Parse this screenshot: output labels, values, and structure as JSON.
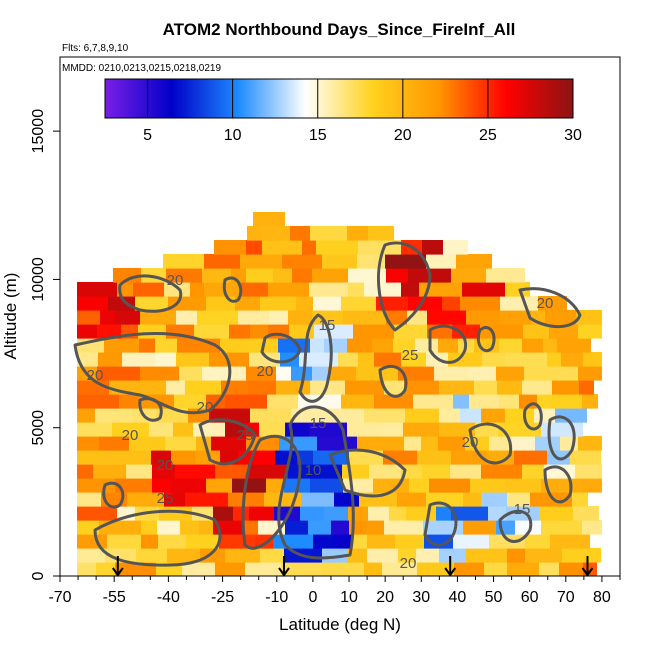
{
  "chart_data": {
    "type": "heatmap",
    "title": "ATOM2 Northbound Days_Since_FireInf_All",
    "subtitle_lines": [
      "Flts: 6,7,8,9,10",
      "MMDD: 0210,0213,0215,0218,0219"
    ],
    "xlabel": "Latitude (deg N)",
    "ylabel": "Altitude (m)",
    "xlim": [
      -70,
      85
    ],
    "ylim": [
      0,
      17500
    ],
    "x_tick_labels": [
      "-70",
      "-55",
      "-40",
      "-25",
      "-10",
      "0",
      "10",
      "20",
      "30",
      "40",
      "50",
      "60",
      "70",
      "80"
    ],
    "x_tick_values": [
      -70,
      -55,
      -40,
      -25,
      -10,
      0,
      10,
      20,
      30,
      40,
      50,
      60,
      70,
      80
    ],
    "y_tick_labels": [
      "0",
      "5000",
      "10000",
      "15000"
    ],
    "y_tick_values": [
      0,
      5000,
      10000,
      15000
    ],
    "colorbar": {
      "range": [
        2.5,
        30
      ],
      "tick_labels": [
        "5",
        "10",
        "15",
        "20",
        "25",
        "30"
      ],
      "tick_values": [
        5,
        10,
        15,
        20,
        25,
        30
      ],
      "colors": [
        "#7a1fe6",
        "#0000c8",
        "#1e8cff",
        "#ffffff",
        "#ffd21e",
        "#ff9600",
        "#ff0000",
        "#8b1414"
      ],
      "placement": "top inset"
    },
    "contour_levels": [
      10,
      15,
      20,
      25
    ],
    "contour_label_texts": [
      "20",
      "20",
      "20",
      "20",
      "20",
      "20",
      "20",
      "20",
      "25",
      "25",
      "25",
      "15",
      "15",
      "15",
      "10",
      "20"
    ],
    "regions": [
      {
        "x": [
          -52,
          60
        ],
        "y": [
          0,
          12500
        ],
        "value": 19
      },
      {
        "x": [
          -28,
          -12
        ],
        "y": [
          1000,
          6000
        ],
        "value": 26
      },
      {
        "x": [
          -68,
          -45
        ],
        "y": [
          8000,
          10500
        ],
        "value": 25
      },
      {
        "x": [
          -45,
          -20
        ],
        "y": [
          2200,
          4200
        ],
        "value": 24
      },
      {
        "x": [
          20,
          35
        ],
        "y": [
          9000,
          12000
        ],
        "value": 26
      },
      {
        "x": [
          35,
          55
        ],
        "y": [
          8200,
          10000
        ],
        "value": 24
      },
      {
        "x": [
          -30,
          0
        ],
        "y": [
          9500,
          12000
        ],
        "value": 21
      },
      {
        "x": [
          -8,
          10
        ],
        "y": [
          600,
          5200
        ],
        "value": 9
      },
      {
        "x": [
          -2,
          8
        ],
        "y": [
          5200,
          8500
        ],
        "value": 13
      },
      {
        "x": [
          -12,
          3
        ],
        "y": [
          6500,
          8000
        ],
        "value": 12
      },
      {
        "x": [
          30,
          45
        ],
        "y": [
          300,
          2500
        ],
        "value": 12
      },
      {
        "x": [
          48,
          62
        ],
        "y": [
          1200,
          3000
        ],
        "value": 13
      },
      {
        "x": [
          62,
          72
        ],
        "y": [
          3200,
          5500
        ],
        "value": 14
      },
      {
        "x": [
          40,
          48
        ],
        "y": [
          4500,
          7000
        ],
        "value": 15
      }
    ],
    "arrows_at_latitude": [
      -54,
      -8,
      38,
      76
    ]
  }
}
